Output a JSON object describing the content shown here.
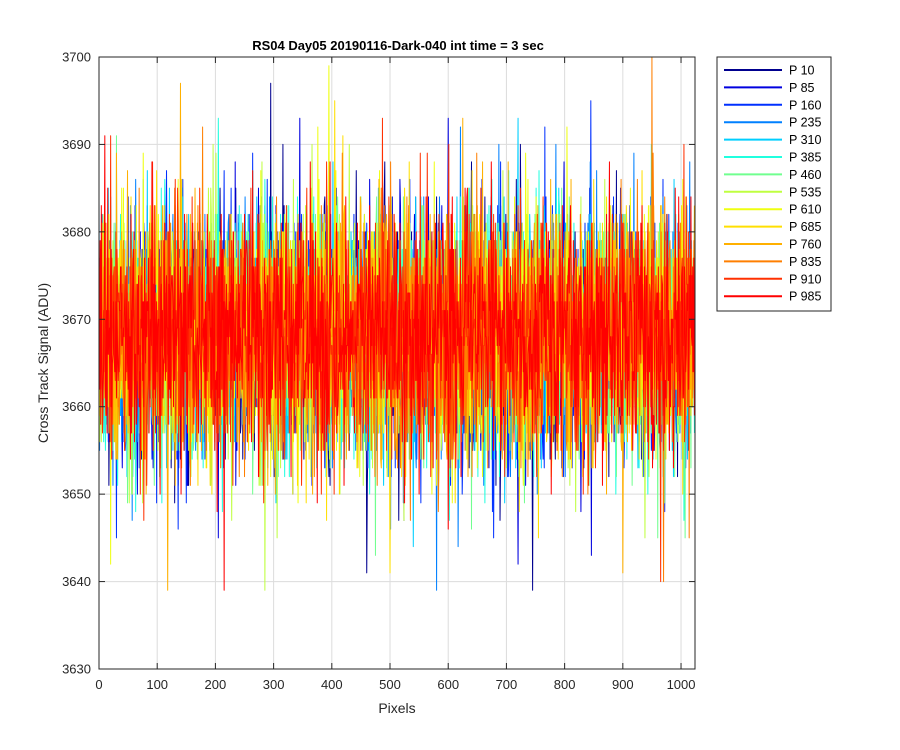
{
  "chart_data": {
    "type": "line",
    "title": "RS04 Day05 20190116-Dark-040 int time = 3 sec",
    "xlabel": "Pixels",
    "ylabel": "Cross Track Signal (ADU)",
    "xlim": [
      0,
      1024
    ],
    "ylim": [
      3630,
      3700
    ],
    "xticks": [
      0,
      100,
      200,
      300,
      400,
      500,
      600,
      700,
      800,
      900,
      1000
    ],
    "yticks": [
      3630,
      3640,
      3650,
      3660,
      3670,
      3680,
      3690,
      3700
    ],
    "grid": true,
    "legend_position": "outside-top-right",
    "n_pixels": 1024,
    "noise": {
      "mean": 3668,
      "sd": 7,
      "min": 3639,
      "max": 3700
    },
    "series": [
      {
        "name": "P 10",
        "color": "#00008f",
        "mean": 3667.5,
        "sd": 7.0,
        "peak": {
          "x": 295,
          "y": 3697
        },
        "trough": {
          "x": 460,
          "y": 3641
        }
      },
      {
        "name": "P 85",
        "color": "#0000df",
        "mean": 3667.5,
        "sd": 7.0,
        "peak": {
          "x": 600,
          "y": 3693
        },
        "trough": {
          "x": 720,
          "y": 3642
        }
      },
      {
        "name": "P 160",
        "color": "#0030ff",
        "mean": 3667.8,
        "sd": 7.0,
        "peak": {
          "x": 845,
          "y": 3695
        },
        "trough": {
          "x": 30,
          "y": 3645
        }
      },
      {
        "name": "P 235",
        "color": "#0080ff",
        "mean": 3667.8,
        "sd": 7.0,
        "peak": {
          "x": 785,
          "y": 3690
        },
        "trough": {
          "x": 580,
          "y": 3639
        }
      },
      {
        "name": "P 310",
        "color": "#00cfff",
        "mean": 3668.0,
        "sd": 7.0,
        "peak": {
          "x": 720,
          "y": 3693
        },
        "trough": {
          "x": 540,
          "y": 3644
        }
      },
      {
        "name": "P 385",
        "color": "#20ffdf",
        "mean": 3668.0,
        "sd": 7.0,
        "peak": {
          "x": 205,
          "y": 3693
        },
        "trough": {
          "x": 1005,
          "y": 3647
        }
      },
      {
        "name": "P 460",
        "color": "#70ff8f",
        "mean": 3668.0,
        "sd": 7.0,
        "peak": {
          "x": 30,
          "y": 3691
        },
        "trough": {
          "x": 640,
          "y": 3646
        }
      },
      {
        "name": "P 535",
        "color": "#bfff40",
        "mean": 3668.2,
        "sd": 7.0,
        "peak": {
          "x": 430,
          "y": 3690
        },
        "trough": {
          "x": 285,
          "y": 3639
        }
      },
      {
        "name": "P 610",
        "color": "#efff10",
        "mean": 3668.2,
        "sd": 7.0,
        "peak": {
          "x": 395,
          "y": 3699
        },
        "trough": {
          "x": 20,
          "y": 3642
        }
      },
      {
        "name": "P 685",
        "color": "#ffdf00",
        "mean": 3668.2,
        "sd": 7.0,
        "peak": {
          "x": 405,
          "y": 3695
        },
        "trough": {
          "x": 500,
          "y": 3641
        }
      },
      {
        "name": "P 760",
        "color": "#ffb000",
        "mean": 3668.3,
        "sd": 7.0,
        "peak": {
          "x": 140,
          "y": 3697
        },
        "trough": {
          "x": 900,
          "y": 3641
        }
      },
      {
        "name": "P 835",
        "color": "#ff7f00",
        "mean": 3668.3,
        "sd": 7.0,
        "peak": {
          "x": 950,
          "y": 3700
        },
        "trough": {
          "x": 970,
          "y": 3640
        }
      },
      {
        "name": "P 910",
        "color": "#ff3000",
        "mean": 3668.3,
        "sd": 7.0,
        "peak": {
          "x": 1005,
          "y": 3690
        },
        "trough": {
          "x": 965,
          "y": 3640
        }
      },
      {
        "name": "P 985",
        "color": "#ff0000",
        "mean": 3668.5,
        "sd": 7.0,
        "peak": {
          "x": 10,
          "y": 3691
        },
        "trough": {
          "x": 215,
          "y": 3639
        }
      }
    ]
  }
}
